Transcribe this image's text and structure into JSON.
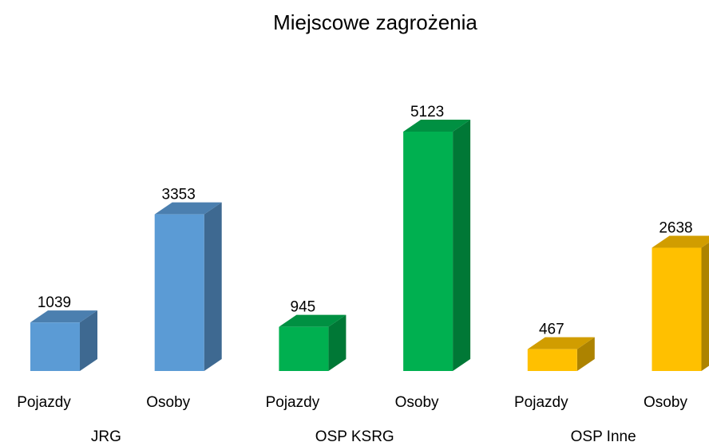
{
  "chart_data": {
    "type": "bar3d",
    "title": "Miejscowe zagrożenia",
    "groups": [
      "JRG",
      "OSP KSRG",
      "OSP Inne"
    ],
    "group_colors": [
      "#5b9bd5",
      "#00b050",
      "#ffc000"
    ],
    "categories": [
      "Pojazdy",
      "Osoby",
      "Pojazdy",
      "Osoby",
      "Pojazdy",
      "Osoby"
    ],
    "values": [
      1039,
      3353,
      945,
      5123,
      467,
      2638
    ]
  }
}
